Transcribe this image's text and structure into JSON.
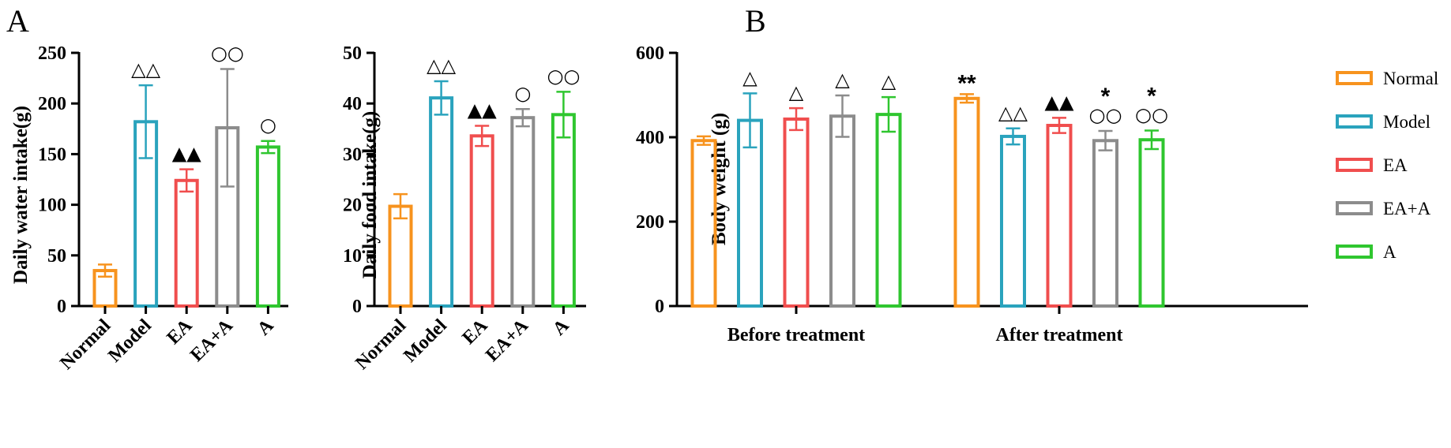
{
  "colors": {
    "Normal": "#f7931e",
    "Model": "#2aa3bd",
    "EA": "#f04e4e",
    "EA+A": "#8c8c8c",
    "A": "#2fc62f"
  },
  "panel_labels": [
    "A",
    "B"
  ],
  "chart_data": [
    {
      "type": "bar",
      "panel": "A",
      "ylabel": "Daily water intake(g)",
      "ylim": [
        0,
        250
      ],
      "yticks": [
        0,
        50,
        100,
        150,
        200,
        250
      ],
      "categories": [
        "Normal",
        "Model",
        "EA",
        "EA+A",
        "A"
      ],
      "values": [
        35,
        182,
        124,
        176,
        157
      ],
      "errors": [
        6,
        36,
        11,
        58,
        6
      ],
      "annotations": [
        "",
        "△△",
        "▲▲",
        "○○",
        "○"
      ]
    },
    {
      "type": "bar",
      "panel": "A",
      "ylabel": "Daily food intake(g)",
      "ylim": [
        0,
        50
      ],
      "yticks": [
        0,
        10,
        20,
        30,
        40,
        50
      ],
      "categories": [
        "Normal",
        "Model",
        "EA",
        "EA+A",
        "A"
      ],
      "values": [
        19.7,
        41.1,
        33.6,
        37.2,
        37.8
      ],
      "errors": [
        2.4,
        3.3,
        2.0,
        1.7,
        4.5
      ],
      "annotations": [
        "",
        "△△",
        "▲▲",
        "○",
        "○○"
      ]
    },
    {
      "type": "bar",
      "panel": "B",
      "ylabel": "Body weight (g)",
      "ylim": [
        0,
        600
      ],
      "yticks": [
        0,
        200,
        400,
        600
      ],
      "groups": [
        "Before treatment",
        "After treatment"
      ],
      "series": [
        {
          "name": "Normal",
          "values": [
            392,
            492
          ],
          "errors": [
            10,
            10
          ]
        },
        {
          "name": "Model",
          "values": [
            440,
            402
          ],
          "errors": [
            64,
            19
          ]
        },
        {
          "name": "EA",
          "values": [
            443,
            428
          ],
          "errors": [
            26,
            18
          ]
        },
        {
          "name": "EA+A",
          "values": [
            450,
            392
          ],
          "errors": [
            49,
            23
          ]
        },
        {
          "name": "A",
          "values": [
            454,
            394
          ],
          "errors": [
            41,
            22
          ]
        }
      ],
      "annotations": [
        {
          "group": "Before treatment",
          "series": "Model",
          "lines": [
            "△"
          ]
        },
        {
          "group": "Before treatment",
          "series": "EA",
          "lines": [
            "△"
          ]
        },
        {
          "group": "Before treatment",
          "series": "EA+A",
          "lines": [
            "△"
          ]
        },
        {
          "group": "Before treatment",
          "series": "A",
          "lines": [
            "△"
          ]
        },
        {
          "group": "After treatment",
          "series": "Normal",
          "lines": [
            "**"
          ]
        },
        {
          "group": "After treatment",
          "series": "Model",
          "lines": [
            "△△"
          ]
        },
        {
          "group": "After treatment",
          "series": "EA",
          "lines": [
            "▲▲"
          ]
        },
        {
          "group": "After treatment",
          "series": "EA+A",
          "lines": [
            "*",
            "○○"
          ]
        },
        {
          "group": "After treatment",
          "series": "A",
          "lines": [
            "*",
            "○○"
          ]
        }
      ],
      "legend": [
        "Normal",
        "Model",
        "EA",
        "EA+A",
        "A"
      ]
    }
  ]
}
